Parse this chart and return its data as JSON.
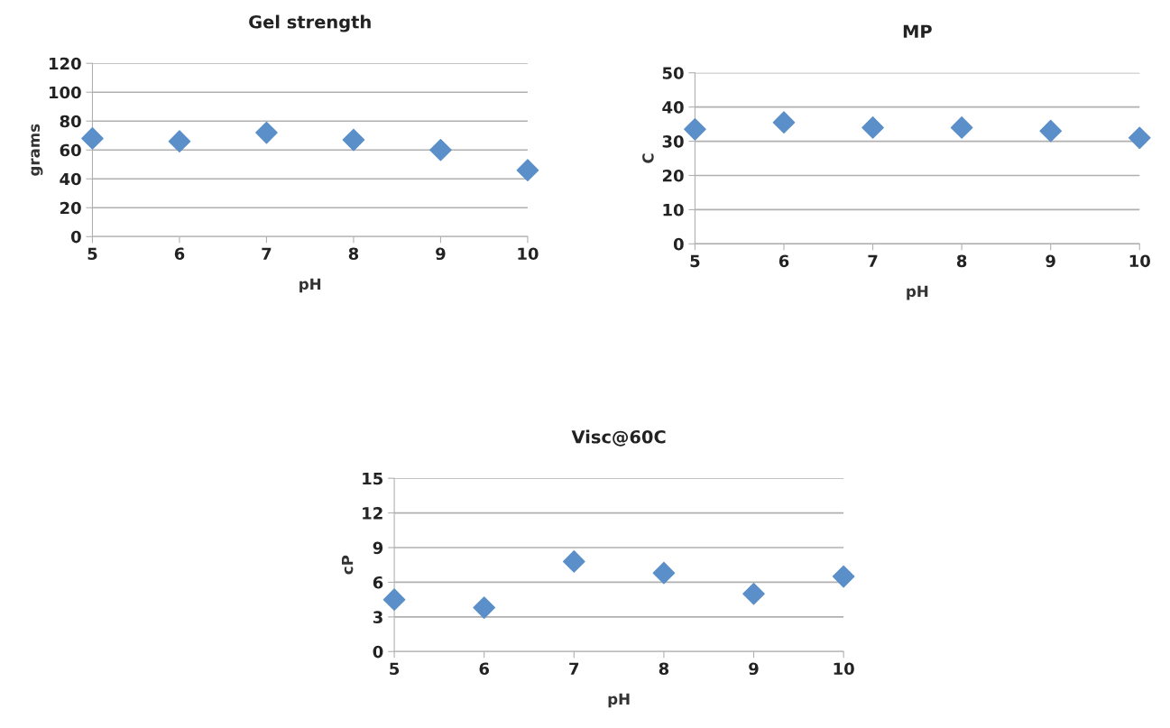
{
  "chart_data": [
    {
      "type": "scatter",
      "title": "Gel strength",
      "xlabel": "pH",
      "ylabel": "grams",
      "x": [
        5,
        6,
        7,
        8,
        9,
        10
      ],
      "series": [
        {
          "color": "#5b8fc9",
          "values": [
            68,
            66,
            72,
            67,
            60,
            46
          ]
        }
      ],
      "xlim": [
        5,
        10
      ],
      "xticks": [
        5,
        6,
        7,
        8,
        9,
        10
      ],
      "ylim": [
        0,
        120
      ],
      "yticks": [
        0,
        20,
        40,
        60,
        80,
        100,
        120
      ],
      "grid": "y",
      "marker": "diamond"
    },
    {
      "type": "scatter",
      "title": "MP",
      "xlabel": "pH",
      "ylabel": "C",
      "x": [
        5,
        6,
        7,
        8,
        9,
        10
      ],
      "series": [
        {
          "color": "#5b8fc9",
          "values": [
            33.5,
            35.5,
            34,
            34,
            33,
            31
          ]
        }
      ],
      "xlim": [
        5,
        10
      ],
      "xticks": [
        5,
        6,
        7,
        8,
        9,
        10
      ],
      "ylim": [
        0,
        50
      ],
      "yticks": [
        0,
        10,
        20,
        30,
        40,
        50
      ],
      "grid": "y",
      "marker": "diamond"
    },
    {
      "type": "scatter",
      "title": "Visc@60C",
      "xlabel": "pH",
      "ylabel": "cP",
      "x": [
        5,
        6,
        7,
        8,
        9,
        10
      ],
      "series": [
        {
          "color": "#5b8fc9",
          "values": [
            4.5,
            3.8,
            7.8,
            6.8,
            5.0,
            6.5
          ]
        }
      ],
      "xlim": [
        5,
        10
      ],
      "xticks": [
        5,
        6,
        7,
        8,
        9,
        10
      ],
      "ylim": [
        0,
        15
      ],
      "yticks": [
        0,
        3,
        6,
        9,
        12,
        15
      ],
      "grid": "y",
      "marker": "diamond"
    }
  ]
}
